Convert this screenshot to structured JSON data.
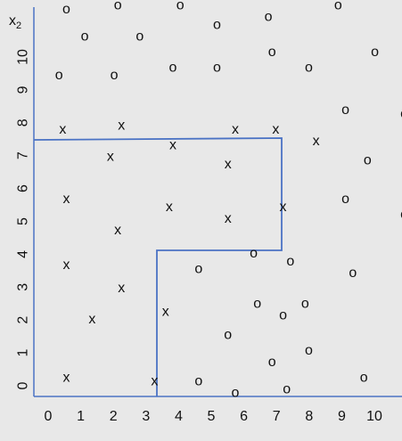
{
  "chart_data": {
    "type": "scatter",
    "ylabel": {
      "main": "x",
      "sub": "2"
    },
    "xlim": [
      0,
      10
    ],
    "ylim": [
      0,
      10
    ],
    "xticks": [
      "0",
      "1",
      "2",
      "3",
      "4",
      "5",
      "6",
      "7",
      "8",
      "9",
      "10"
    ],
    "yticks": [
      "0",
      "1",
      "2",
      "3",
      "4",
      "5",
      "6",
      "7",
      "8",
      "9",
      "10"
    ],
    "colors": {
      "axis": "#4a72c4",
      "boundary": "#4a72c4",
      "marker": "#111111",
      "background": "#e8e8e8"
    },
    "series": [
      {
        "symbol": "x",
        "points": [
          [
            0.3,
            6.9
          ],
          [
            1.9,
            7.0
          ],
          [
            1.6,
            6.2
          ],
          [
            3.3,
            6.5
          ],
          [
            5.0,
            6.9
          ],
          [
            4.8,
            6.0
          ],
          [
            6.1,
            6.9
          ],
          [
            7.2,
            6.6
          ],
          [
            0.4,
            5.1
          ],
          [
            3.2,
            4.9
          ],
          [
            1.8,
            4.3
          ],
          [
            4.8,
            4.6
          ],
          [
            6.3,
            4.9
          ],
          [
            0.4,
            3.4
          ],
          [
            1.9,
            2.8
          ],
          [
            3.1,
            2.2
          ],
          [
            1.1,
            2.0
          ],
          [
            0.4,
            0.5
          ],
          [
            2.8,
            0.4
          ]
        ]
      },
      {
        "symbol": "o",
        "points": [
          [
            0.4,
            10.0
          ],
          [
            1.8,
            10.1
          ],
          [
            3.5,
            10.1
          ],
          [
            4.5,
            9.6
          ],
          [
            5.9,
            9.8
          ],
          [
            7.8,
            10.1
          ],
          [
            0.9,
            9.3
          ],
          [
            2.4,
            9.3
          ],
          [
            6.0,
            8.9
          ],
          [
            8.8,
            8.9
          ],
          [
            0.2,
            8.3
          ],
          [
            1.7,
            8.3
          ],
          [
            3.3,
            8.5
          ],
          [
            4.5,
            8.5
          ],
          [
            7.0,
            8.5
          ],
          [
            8.0,
            7.4
          ],
          [
            9.6,
            7.3
          ],
          [
            8.6,
            6.1
          ],
          [
            8.0,
            5.1
          ],
          [
            9.6,
            4.7
          ],
          [
            5.5,
            3.7
          ],
          [
            4.0,
            3.3
          ],
          [
            6.5,
            3.5
          ],
          [
            8.2,
            3.2
          ],
          [
            5.6,
            2.4
          ],
          [
            6.3,
            2.1
          ],
          [
            6.9,
            2.4
          ],
          [
            4.8,
            1.6
          ],
          [
            7.0,
            1.2
          ],
          [
            6.0,
            0.9
          ],
          [
            4.0,
            0.4
          ],
          [
            5.0,
            0.1
          ],
          [
            6.4,
            0.2
          ],
          [
            8.5,
            0.5
          ]
        ]
      }
    ]
  }
}
